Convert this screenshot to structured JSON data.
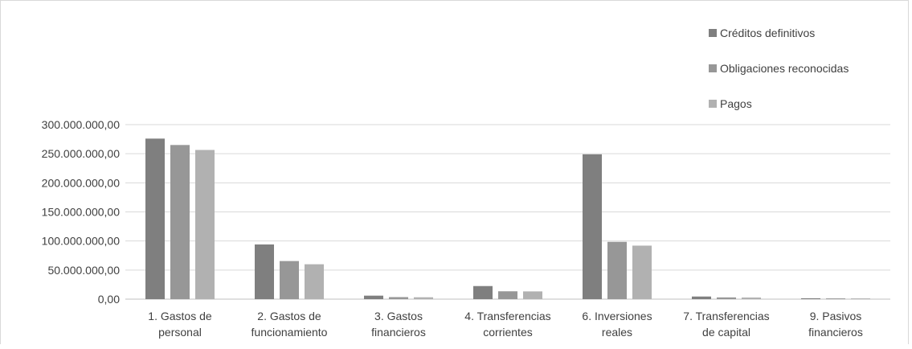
{
  "chart_data": {
    "type": "bar",
    "categories": [
      [
        "1. Gastos de",
        "personal"
      ],
      [
        "2. Gastos de",
        "funcionamiento"
      ],
      [
        "3. Gastos",
        "financieros"
      ],
      [
        "4. Transferencias",
        "corrientes"
      ],
      [
        "6. Inversiones",
        "reales"
      ],
      [
        "7. Transferencias",
        "de capital"
      ],
      [
        "9. Pasivos",
        "financieros"
      ]
    ],
    "series": [
      {
        "name": "Créditos definitivos",
        "color": "#7f7f7f",
        "values": [
          276000000,
          94000000,
          6000000,
          22500000,
          249000000,
          4500000,
          1500000
        ]
      },
      {
        "name": "Obligaciones reconocidas",
        "color": "#979797",
        "values": [
          265000000,
          65500000,
          3500000,
          13500000,
          98500000,
          3000000,
          1300000
        ]
      },
      {
        "name": "Pagos",
        "color": "#b1b1b1",
        "values": [
          256500000,
          60000000,
          3200000,
          13300000,
          92000000,
          2800000,
          1300000
        ]
      }
    ],
    "y_ticks": [
      {
        "value": 0,
        "label": "0,00"
      },
      {
        "value": 50000000,
        "label": "50.000.000,00"
      },
      {
        "value": 100000000,
        "label": "100.000.000,00"
      },
      {
        "value": 150000000,
        "label": "150.000.000,00"
      },
      {
        "value": 200000000,
        "label": "200.000.000,00"
      },
      {
        "value": 250000000,
        "label": "250.000.000,00"
      },
      {
        "value": 300000000,
        "label": "300.000.000,00"
      }
    ],
    "ylim": [
      0,
      300000000
    ],
    "grid": true,
    "legend_position": "top-right",
    "title": "",
    "xlabel": "",
    "ylabel": ""
  }
}
